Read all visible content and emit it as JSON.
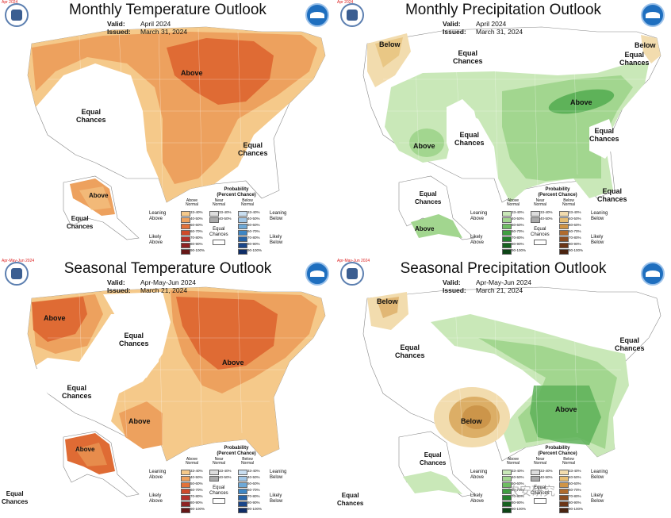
{
  "panels": [
    {
      "title": "Monthly Temperature Outlook",
      "valid_label": "Valid:",
      "valid": "April 2024",
      "issued_label": "Issued:",
      "issued": "March 31, 2024",
      "corner_text": "Apr 2024",
      "labels": [
        "Above",
        "Equal\nChances",
        "Equal\nChances",
        "Above",
        "Equal\nChances"
      ]
    },
    {
      "title": "Monthly Precipitation Outlook",
      "valid_label": "Valid:",
      "valid": "April 2024",
      "issued_label": "Issued:",
      "issued": "March 31, 2024",
      "corner_text": "Apr 2024",
      "labels": [
        "Below",
        "Equal\nChances",
        "Below",
        "Equal\nChances",
        "Above",
        "Above",
        "Equal\nChances",
        "Equal\nChances",
        "Equal\nChances",
        "Above",
        "Equal\nChances"
      ]
    },
    {
      "title": "Seasonal Temperature Outlook",
      "valid_label": "Valid:",
      "valid": "Apr-May-Jun 2024",
      "issued_label": "Issued:",
      "issued": "March 21, 2024",
      "corner_text": "Apr-May-Jun 2024",
      "labels": [
        "Above",
        "Equal\nChances",
        "Above",
        "Equal\nChances",
        "Above",
        "Above",
        "Equal\nChances"
      ]
    },
    {
      "title": "Seasonal Precipitation Outlook",
      "valid_label": "Valid:",
      "valid": "Apr-May-Jun 2024",
      "issued_label": "Issued:",
      "issued": "March 21, 2024",
      "corner_text": "Apr-May-Jun 2024",
      "labels": [
        "Below",
        "Equal\nChances",
        "Below",
        "Above",
        "Equal\nChances",
        "Equal\nChances",
        "Equal\nChances"
      ]
    }
  ],
  "legend": {
    "title": "Probability\n(Percent Chance)",
    "temp_above_header": "Above\nNormal",
    "temp_below_header": "Below\nNormal",
    "precip_above_header": "Above\nNormal",
    "precip_below_header": "Below\nNormal",
    "near_header": "Near\nNormal",
    "leaning_above": "Leaning\nAbove",
    "likely_above": "Likely\nAbove",
    "leaning_below": "Leaning\nBelow",
    "likely_below": "Likely\nBelow",
    "equal_chances": "Equal\nChances",
    "bins": [
      "33-40%",
      "40-50%",
      "50-60%",
      "60-70%",
      "70-80%",
      "80-90%",
      "90-100%"
    ],
    "near_bins": [
      "33-40%",
      "40-50%"
    ],
    "temp_above_colors": [
      "#f5c98a",
      "#eda15e",
      "#e2723a",
      "#cf4a2a",
      "#b3302a",
      "#8e2223",
      "#661717"
    ],
    "temp_below_colors": [
      "#c9def0",
      "#a1c6e6",
      "#6ea8d6",
      "#3e86c4",
      "#2763a6",
      "#1b4689",
      "#0f2d66"
    ],
    "precip_above_colors": [
      "#c9e8b8",
      "#a2d68f",
      "#6fbd63",
      "#3f9e40",
      "#25802d",
      "#16611f",
      "#0c4415"
    ],
    "precip_below_colors": [
      "#f2dcae",
      "#e6bd73",
      "#cf9446",
      "#b06b2d",
      "#8c4d21",
      "#6b3618",
      "#4a2410"
    ],
    "near_colors": [
      "#dddddd",
      "#aaaaaa"
    ]
  },
  "map_colors": {
    "temp_light": "#f5c98a",
    "temp_mid": "#eda15e",
    "temp_dark": "#df6b34",
    "precip_green_light": "#c9e8b8",
    "precip_green_mid": "#a2d68f",
    "precip_green_dark": "#5eb259",
    "precip_brown_light": "#f2dcae",
    "precip_brown_mid": "#dcae66",
    "precip_brown_dark": "#c58a3e"
  },
  "watermark": "农安研究"
}
